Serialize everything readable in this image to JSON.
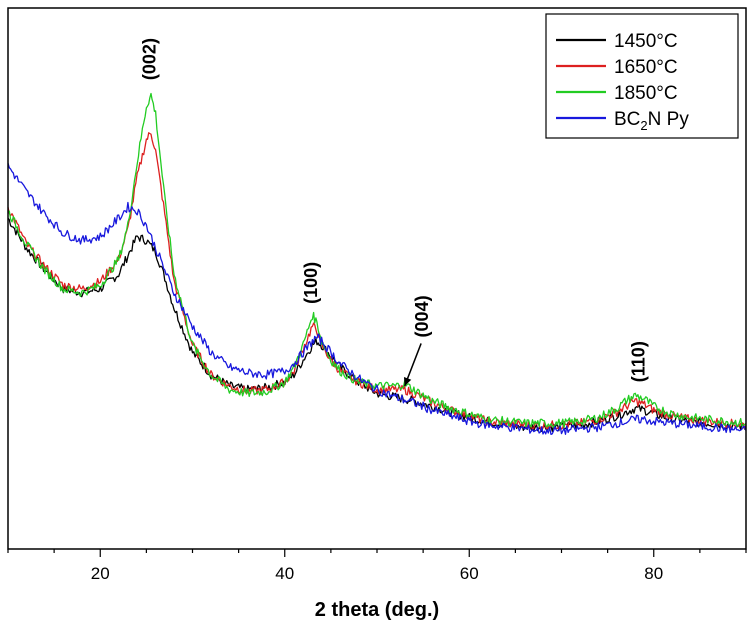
{
  "chart_data": {
    "type": "line",
    "xlabel": "2 theta (deg.)",
    "ylabel": "",
    "xlim": [
      10,
      90
    ],
    "ylim": [
      0,
      100
    ],
    "x_ticks": [
      20,
      40,
      60,
      80
    ],
    "x_tick_labels": [
      "20",
      "40",
      "60",
      "80"
    ],
    "legend_position": "top-right",
    "grid": false,
    "series": [
      {
        "name": "1450°C",
        "label_main": "1450°C",
        "label_sub": "",
        "label_tail": "",
        "color": "#000000",
        "x": [
          10,
          12,
          14,
          16,
          18,
          20,
          22,
          23,
          24,
          25,
          26,
          27,
          28,
          30,
          32,
          34,
          36,
          38,
          40,
          41,
          42,
          43,
          43.5,
          44,
          45,
          46,
          48,
          50,
          52,
          54,
          56,
          58,
          60,
          62,
          64,
          66,
          68,
          70,
          72,
          74,
          76,
          77,
          78,
          79,
          80,
          82,
          84,
          86,
          88,
          90
        ],
        "y": [
          67,
          59,
          53,
          48,
          47,
          48,
          52,
          57,
          62,
          61,
          58,
          51,
          43,
          31,
          25,
          22,
          21,
          21.5,
          23,
          25,
          29,
          33,
          34,
          33,
          30,
          27,
          23,
          20,
          19,
          18,
          16.5,
          15,
          13.5,
          12.5,
          11.5,
          11,
          11,
          11,
          11.5,
          12.5,
          14,
          15,
          16,
          15.5,
          14.5,
          13,
          12.5,
          12,
          11.5,
          11
        ]
      },
      {
        "name": "1650°C",
        "label_main": "1650°C",
        "label_sub": "",
        "label_tail": "",
        "color": "#dd2020",
        "x": [
          10,
          12,
          14,
          16,
          18,
          20,
          22,
          23,
          24,
          25,
          25.5,
          26,
          27,
          28,
          30,
          32,
          34,
          36,
          38,
          40,
          41,
          42,
          43,
          43.5,
          44,
          45,
          46,
          48,
          50,
          52,
          53,
          54,
          56,
          58,
          60,
          62,
          64,
          66,
          68,
          70,
          72,
          74,
          76,
          77,
          78,
          79,
          80,
          82,
          84,
          86,
          88,
          90
        ],
        "y": [
          70,
          60,
          54,
          49,
          48,
          50,
          56,
          64,
          78,
          88,
          90,
          85,
          68,
          50,
          33,
          25,
          22,
          20.5,
          21,
          23,
          26,
          32,
          38,
          37,
          33,
          29,
          26,
          23,
          21,
          21,
          21,
          20,
          17.5,
          15.5,
          14,
          12.5,
          12,
          11.5,
          11.5,
          11.5,
          12,
          13,
          15,
          16.5,
          18,
          17,
          15.5,
          14,
          13,
          12.5,
          12,
          11.5
        ]
      },
      {
        "name": "1850°C",
        "label_main": "1850°C",
        "label_sub": "",
        "label_tail": "",
        "color": "#22cc22",
        "x": [
          10,
          12,
          14,
          16,
          18,
          20,
          22,
          23,
          24,
          25,
          25.5,
          26,
          27,
          28,
          30,
          32,
          34,
          36,
          38,
          40,
          41,
          42,
          43,
          43.5,
          44,
          45,
          46,
          48,
          50,
          52,
          53,
          54,
          56,
          58,
          60,
          62,
          64,
          66,
          68,
          70,
          72,
          74,
          76,
          77,
          78,
          79,
          80,
          82,
          84,
          86,
          88,
          90
        ],
        "y": [
          69,
          60,
          53,
          48,
          47,
          49,
          56,
          65,
          82,
          97,
          100,
          95,
          72,
          52,
          33,
          25,
          21,
          20,
          20.5,
          23,
          27,
          33,
          41,
          39,
          34,
          29,
          26,
          23,
          22,
          22,
          22.5,
          21,
          18,
          16,
          14.5,
          13,
          12.5,
          12,
          12,
          12,
          12.5,
          13.5,
          16,
          18,
          19.5,
          18.5,
          16.5,
          14.5,
          13.5,
          13,
          12.5,
          12
        ]
      },
      {
        "name": "BC2N Py",
        "label_main": "BC",
        "label_sub": "2",
        "label_tail": "N Py",
        "color": "#1818dd",
        "x": [
          10,
          12,
          14,
          16,
          18,
          20,
          22,
          23,
          24,
          25,
          26,
          27,
          28,
          30,
          32,
          34,
          36,
          38,
          40,
          41,
          42,
          43,
          43.5,
          44,
          45,
          46,
          48,
          50,
          52,
          54,
          56,
          58,
          60,
          62,
          64,
          66,
          68,
          70,
          72,
          74,
          76,
          78,
          79,
          80,
          82,
          84,
          86,
          88,
          90
        ],
        "y": [
          81,
          74,
          68,
          63,
          61,
          62,
          67,
          70,
          69,
          65,
          59,
          53,
          47,
          38,
          31,
          27,
          25.5,
          25,
          26,
          28,
          31,
          34,
          35,
          34,
          31,
          28,
          24,
          21,
          19,
          17.5,
          15.5,
          14,
          12.5,
          11.5,
          11,
          10.5,
          10,
          10,
          10.5,
          11,
          12,
          13,
          13,
          12.5,
          12,
          11.5,
          11,
          10.5,
          10
        ]
      }
    ],
    "annotations": [
      {
        "text": "(002)",
        "x": 25.5,
        "level": 104
      },
      {
        "text": "(100)",
        "x": 43,
        "level": 44
      },
      {
        "text": "(004)",
        "x": 55,
        "level": 35,
        "arrow_to": [
          53,
          22
        ]
      },
      {
        "text": "(110)",
        "x": 78.5,
        "level": 23
      }
    ]
  }
}
